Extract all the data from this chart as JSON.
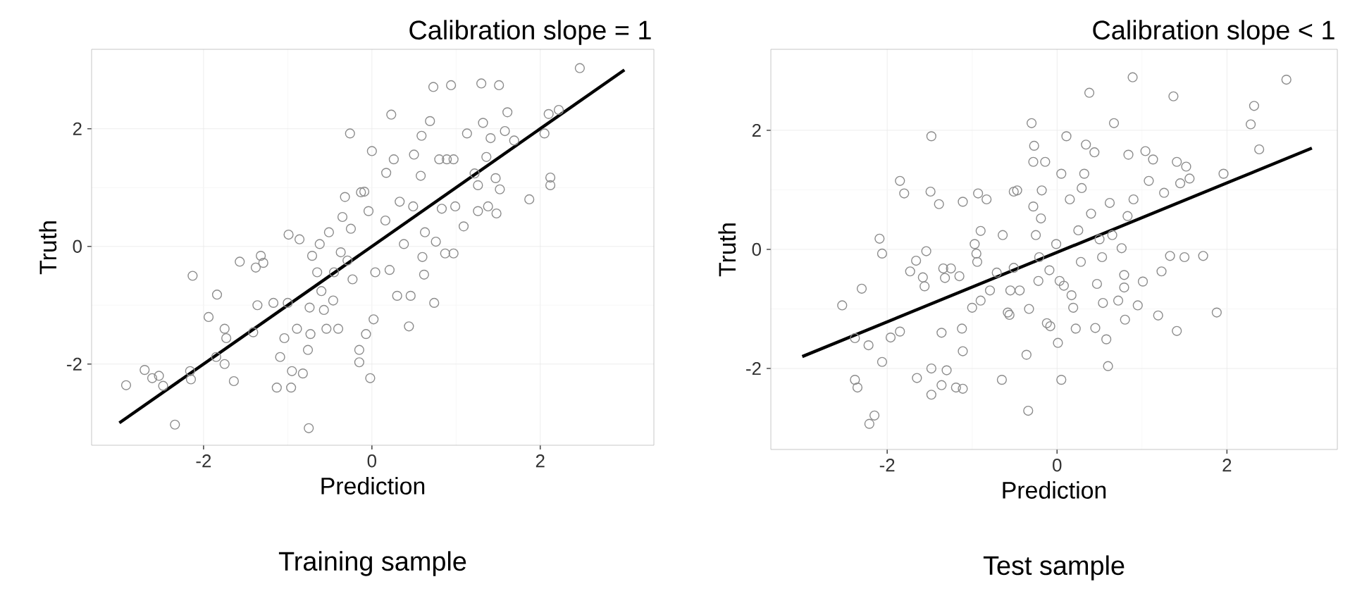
{
  "chart_data": [
    {
      "type": "scatter",
      "title": "Calibration slope = 1",
      "annotations": [
        "Training sample"
      ],
      "xlabel": "Prediction",
      "ylabel": "Truth",
      "xlim": [
        -3.33,
        3.35
      ],
      "ylim": [
        -3.38,
        3.35
      ],
      "xticks": [
        -2,
        0,
        2
      ],
      "yticks": [
        -2,
        0,
        2
      ],
      "grid": true,
      "marker": "circle",
      "series": [
        {
          "color": "#8c8c8c",
          "x": [
            -2.92,
            -2.7,
            -2.61,
            -2.53,
            -2.48,
            -2.34,
            -2.16,
            -2.15,
            -2.13,
            -1.94,
            -1.84,
            -1.85,
            -1.75,
            -1.73,
            -1.75,
            -1.64,
            -1.57,
            -1.41,
            -1.38,
            -1.32,
            -1.29,
            -1.36,
            -1.17,
            -1.13,
            -1.09,
            -1.04,
            -1.0,
            -0.99,
            -0.95,
            -0.96,
            -0.89,
            -0.86,
            -0.82,
            -0.76,
            -0.75,
            -0.74,
            -0.73,
            -0.71,
            -0.65,
            -0.62,
            -0.6,
            -0.57,
            -0.54,
            -0.51,
            -0.46,
            -0.45,
            -0.4,
            -0.37,
            -0.35,
            -0.32,
            -0.29,
            -0.26,
            -0.25,
            -0.23,
            -0.15,
            -0.13,
            -0.15,
            -0.02,
            -0.07,
            0.02,
            0.0,
            -0.09,
            -0.04,
            0.04,
            0.16,
            0.21,
            0.17,
            0.23,
            0.26,
            0.3,
            0.33,
            0.38,
            0.44,
            0.46,
            0.49,
            0.5,
            0.58,
            0.59,
            0.6,
            0.62,
            0.63,
            0.69,
            0.73,
            0.74,
            0.76,
            0.8,
            0.83,
            0.87,
            0.89,
            0.94,
            0.97,
            0.97,
            0.99,
            1.09,
            1.13,
            1.22,
            1.26,
            1.26,
            1.3,
            1.32,
            1.36,
            1.38,
            1.41,
            1.47,
            1.48,
            1.51,
            1.52,
            1.58,
            1.61,
            1.69,
            1.87,
            2.05,
            2.1,
            2.12,
            2.12,
            2.22,
            2.47
          ],
          "values": [
            -2.36,
            -2.1,
            -2.24,
            -2.2,
            -2.37,
            -3.03,
            -2.12,
            -2.26,
            -0.5,
            -1.2,
            -0.82,
            -1.88,
            -1.4,
            -1.56,
            -2.0,
            -2.29,
            -0.26,
            -1.46,
            -0.36,
            -0.16,
            -0.28,
            -1.0,
            -0.96,
            -2.4,
            -1.88,
            -1.56,
            -0.96,
            0.2,
            -2.12,
            -2.4,
            -1.4,
            0.12,
            -2.16,
            -1.76,
            -3.09,
            -1.04,
            -1.49,
            -0.16,
            -0.44,
            0.04,
            -0.76,
            -1.08,
            -1.4,
            0.24,
            -0.92,
            -0.44,
            -1.4,
            -0.1,
            0.5,
            0.84,
            -0.24,
            1.92,
            0.3,
            -0.56,
            -1.76,
            0.92,
            -1.97,
            -2.24,
            -1.49,
            -1.24,
            1.62,
            0.93,
            0.6,
            -0.44,
            0.44,
            -0.4,
            1.25,
            2.24,
            1.48,
            -0.84,
            0.76,
            0.04,
            -1.36,
            -0.84,
            0.68,
            1.56,
            1.2,
            1.88,
            -0.18,
            -0.48,
            0.24,
            2.13,
            2.71,
            -0.96,
            0.08,
            1.48,
            0.64,
            -0.12,
            1.48,
            2.74,
            -0.12,
            1.48,
            0.68,
            0.34,
            1.92,
            1.24,
            1.04,
            0.6,
            2.77,
            2.1,
            1.52,
            0.68,
            1.84,
            1.16,
            0.56,
            2.74,
            0.97,
            1.96,
            2.28,
            1.8,
            0.8,
            1.92,
            2.25,
            1.17,
            1.04,
            2.32,
            3.03
          ]
        },
        {
          "type": "line",
          "color": "#000000",
          "marker": "none",
          "x": [
            -3,
            3
          ],
          "values": [
            -3,
            3
          ]
        }
      ]
    },
    {
      "type": "scatter",
      "title": "Calibration slope < 1",
      "annotations": [
        "Test sample"
      ],
      "xlabel": "Prediction",
      "ylabel": "Truth",
      "xlim": [
        -3.37,
        3.3
      ],
      "ylim": [
        -3.36,
        3.36
      ],
      "xticks": [
        -2,
        0,
        2
      ],
      "yticks": [
        -2,
        0,
        2
      ],
      "grid": true,
      "marker": "circle",
      "series": [
        {
          "color": "#8c8c8c",
          "x": [
            -2.53,
            -2.38,
            -2.38,
            -2.35,
            -2.3,
            -2.22,
            -2.21,
            -2.15,
            -2.09,
            -2.06,
            -2.06,
            -1.96,
            -1.85,
            -1.85,
            -1.8,
            -1.73,
            -1.66,
            -1.65,
            -1.58,
            -1.56,
            -1.54,
            -1.49,
            -1.48,
            -1.48,
            -1.48,
            -1.39,
            -1.36,
            -1.34,
            -1.36,
            -1.32,
            -1.3,
            -1.25,
            -1.19,
            -1.15,
            -1.12,
            -1.11,
            -1.11,
            -1.11,
            -1.0,
            -0.97,
            -0.95,
            -0.94,
            -0.93,
            -0.9,
            -0.9,
            -0.83,
            -0.79,
            -0.71,
            -0.65,
            -0.64,
            -0.55,
            -0.56,
            -0.51,
            -0.58,
            -0.51,
            -0.47,
            -0.44,
            -0.36,
            -0.34,
            -0.33,
            -0.3,
            -0.28,
            -0.27,
            -0.28,
            -0.25,
            -0.22,
            -0.21,
            -0.19,
            -0.18,
            -0.14,
            -0.12,
            -0.09,
            -0.08,
            -0.01,
            0.01,
            0.05,
            0.03,
            0.05,
            0.08,
            0.11,
            0.15,
            0.17,
            0.19,
            0.22,
            0.25,
            0.28,
            0.29,
            0.32,
            0.34,
            0.38,
            0.4,
            0.44,
            0.45,
            0.47,
            0.5,
            0.53,
            0.54,
            0.58,
            0.6,
            0.62,
            0.65,
            0.67,
            0.72,
            0.76,
            0.79,
            0.79,
            0.8,
            0.83,
            0.84,
            0.89,
            0.9,
            0.95,
            1.01,
            1.04,
            1.08,
            1.13,
            1.19,
            1.23,
            1.26,
            1.33,
            1.37,
            1.41,
            1.41,
            1.45,
            1.5,
            1.52,
            1.56,
            1.72,
            1.88,
            1.96,
            2.28,
            2.32,
            2.38,
            2.7
          ],
          "values": [
            -0.94,
            -1.49,
            -2.19,
            -2.32,
            -0.66,
            -1.61,
            -2.93,
            -2.79,
            0.18,
            -0.07,
            -1.89,
            -1.48,
            1.15,
            -1.38,
            0.94,
            -0.37,
            -0.19,
            -2.16,
            -0.47,
            -0.62,
            -0.03,
            0.97,
            1.9,
            -2.0,
            -2.44,
            0.76,
            -1.4,
            -0.32,
            -2.28,
            -0.48,
            -2.03,
            -0.32,
            -2.32,
            -0.45,
            -1.33,
            -2.34,
            0.8,
            -1.71,
            -0.98,
            0.09,
            -0.07,
            -0.21,
            0.94,
            0.31,
            -0.86,
            0.84,
            -0.69,
            -0.39,
            -2.19,
            0.24,
            -0.69,
            -1.1,
            0.97,
            -1.06,
            -0.31,
            0.99,
            -0.69,
            -1.77,
            -2.71,
            -1.0,
            2.12,
            0.72,
            1.74,
            1.47,
            0.24,
            -0.53,
            -0.13,
            0.52,
            0.99,
            1.47,
            -1.24,
            -0.35,
            -1.29,
            0.09,
            -1.57,
            -2.19,
            -0.53,
            1.27,
            -0.61,
            1.9,
            0.84,
            -0.77,
            -0.98,
            -1.33,
            0.32,
            -0.21,
            1.03,
            1.27,
            1.76,
            2.63,
            0.6,
            1.63,
            -1.32,
            -0.58,
            0.17,
            -0.13,
            -0.9,
            -1.51,
            -1.96,
            0.78,
            0.24,
            2.12,
            -0.86,
            0.02,
            -0.43,
            -0.64,
            -1.18,
            0.56,
            1.59,
            2.89,
            0.84,
            -0.94,
            -0.54,
            1.65,
            1.15,
            1.51,
            -1.11,
            -0.37,
            0.95,
            -0.11,
            2.57,
            1.47,
            -1.37,
            1.11,
            -0.13,
            1.39,
            1.19,
            -0.11,
            -1.06,
            1.27,
            2.1,
            2.41,
            1.68,
            2.85
          ]
        },
        {
          "type": "line",
          "color": "#000000",
          "marker": "none",
          "x": [
            -3,
            3
          ],
          "values": [
            -1.8,
            1.7
          ]
        }
      ]
    }
  ]
}
